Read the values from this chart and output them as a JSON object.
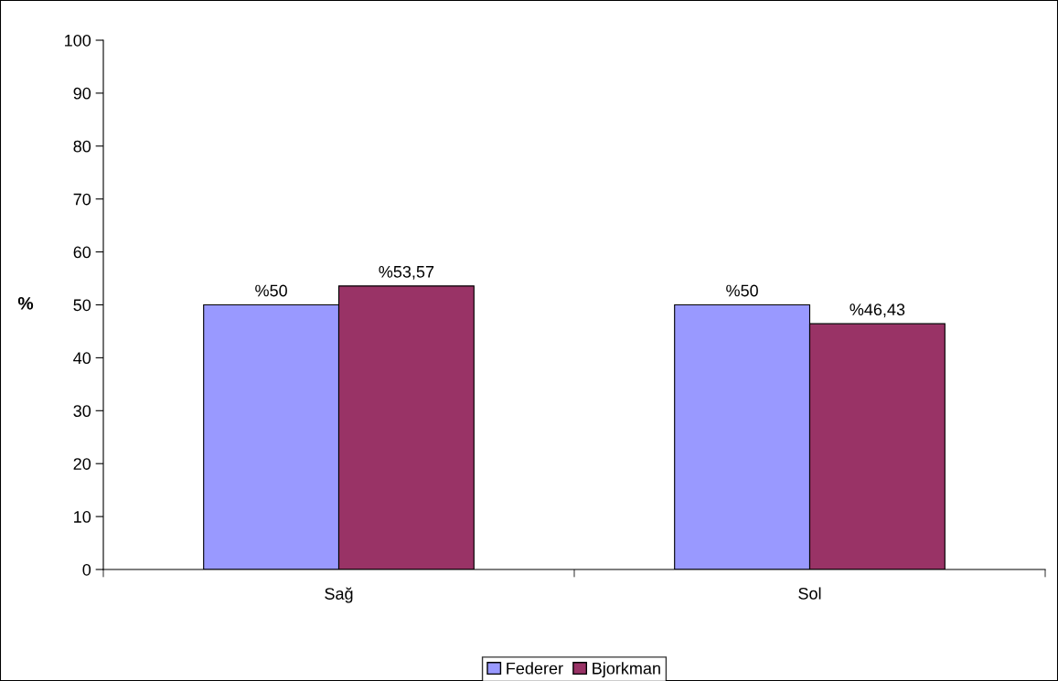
{
  "chart_data": {
    "type": "bar",
    "ylabel": "%",
    "categories": [
      "Sağ",
      "Sol"
    ],
    "series": [
      {
        "name": "Federer",
        "color": "#9999ff",
        "values": [
          50,
          50
        ],
        "value_labels": [
          "%50",
          "%50"
        ]
      },
      {
        "name": "Bjorkman",
        "color": "#993366",
        "values": [
          53.57,
          46.43
        ],
        "value_labels": [
          "%53,57",
          "%46,43"
        ]
      }
    ],
    "ylim": [
      0,
      100
    ],
    "yticks": [
      0,
      10,
      20,
      30,
      40,
      50,
      60,
      70,
      80,
      90,
      100
    ],
    "grid": false,
    "legend": "bottom"
  }
}
